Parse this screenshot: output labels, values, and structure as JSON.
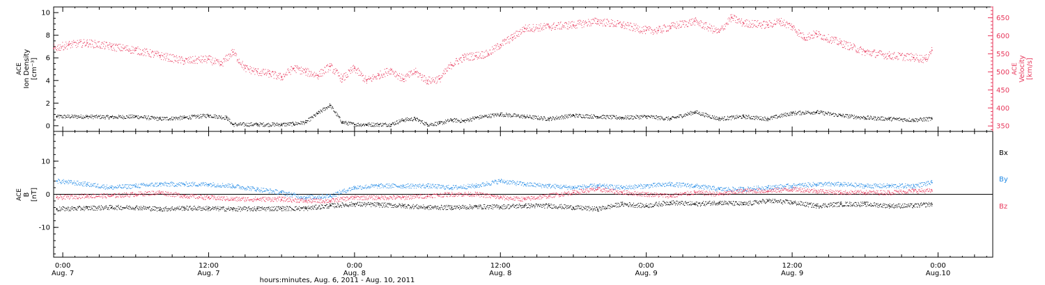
{
  "xaxis": {
    "tick_labels": [
      {
        "time": "0:00",
        "date": "Aug. 7",
        "hours": 0
      },
      {
        "time": "12:00",
        "date": "Aug. 7",
        "hours": 12
      },
      {
        "time": "0:00",
        "date": "Aug. 8",
        "hours": 24
      },
      {
        "time": "12:00",
        "date": "Aug. 8",
        "hours": 36
      },
      {
        "time": "0:00",
        "date": "Aug. 9",
        "hours": 48
      },
      {
        "time": "12:00",
        "date": "Aug. 9",
        "hours": 60
      },
      {
        "time": "0:00",
        "date": "Aug.10",
        "hours": 72
      }
    ],
    "title": "hours:minutes, Aug.  6, 2011 - Aug. 10, 2011",
    "range_hours_from_aug7_0000": [
      -0.75,
      76.5
    ]
  },
  "colors": {
    "density": "#000000",
    "velocity": "#e8385c",
    "bx": "#000000",
    "by": "#1e88e5",
    "bz": "#e8385c"
  },
  "chart_data": [
    {
      "type": "scatter",
      "panel": "top",
      "left_axis": {
        "label_lines": [
          "ACE",
          "Ion Density",
          "[cm⁻³]"
        ],
        "ylim": [
          -0.5,
          10.5
        ],
        "ticks": [
          "0",
          "2",
          "4",
          "6",
          "8",
          "10"
        ]
      },
      "right_axis": {
        "label_lines": [
          "ACE",
          "Velocity",
          "[km/s]"
        ],
        "ylim": [
          335,
          680
        ],
        "ticks": [
          "350",
          "400",
          "450",
          "500",
          "550",
          "600",
          "650"
        ]
      },
      "series": [
        {
          "key": "density",
          "axis": "left",
          "x": [
            -0.5,
            2,
            4,
            6,
            8,
            10,
            12,
            13.5,
            14,
            16,
            18,
            19,
            20,
            21,
            22,
            23,
            24,
            25,
            26,
            27,
            28,
            29,
            30,
            31,
            32,
            33,
            34,
            36,
            38,
            40,
            42,
            44,
            46,
            48,
            50,
            52,
            54,
            56,
            58,
            60,
            62,
            64,
            66,
            68,
            70,
            71.5
          ],
          "y": [
            0.8,
            0.8,
            0.75,
            0.8,
            0.6,
            0.7,
            0.9,
            0.7,
            0.1,
            0.1,
            0.1,
            0.15,
            0.3,
            1.1,
            1.8,
            0.3,
            0.1,
            0.1,
            0.1,
            0.1,
            0.5,
            0.6,
            0.1,
            0.2,
            0.5,
            0.4,
            0.7,
            1.0,
            0.8,
            0.6,
            0.9,
            0.8,
            0.7,
            0.8,
            0.6,
            1.2,
            0.6,
            0.8,
            0.6,
            1.1,
            1.2,
            0.9,
            0.7,
            0.6,
            0.5,
            0.6
          ]
        },
        {
          "key": "velocity",
          "axis": "right",
          "x": [
            -0.75,
            0.5,
            2,
            4,
            6,
            8,
            10,
            12,
            13,
            14,
            15,
            16,
            17,
            18,
            19,
            20,
            21,
            22,
            23,
            24,
            25,
            26,
            27,
            28,
            29,
            30,
            31,
            32,
            33,
            34,
            35,
            36,
            37,
            38,
            40,
            42,
            44,
            46,
            48,
            49,
            50,
            52,
            54,
            55,
            56,
            58,
            59,
            60,
            61,
            62,
            64,
            66,
            68,
            70,
            71,
            71.5
          ],
          "y": [
            565,
            575,
            580,
            570,
            560,
            545,
            530,
            535,
            520,
            555,
            510,
            500,
            495,
            485,
            510,
            500,
            490,
            515,
            480,
            510,
            475,
            490,
            505,
            480,
            500,
            475,
            480,
            520,
            540,
            545,
            550,
            575,
            595,
            620,
            625,
            630,
            640,
            630,
            615,
            615,
            625,
            640,
            610,
            650,
            635,
            630,
            640,
            625,
            595,
            605,
            580,
            555,
            545,
            540,
            535,
            560
          ]
        }
      ]
    },
    {
      "type": "scatter",
      "panel": "bottom",
      "left_axis": {
        "label_lines": [
          "ACE",
          "B",
          "[nT]"
        ],
        "ylim": [
          -19,
          19
        ],
        "ticks": [
          "-10",
          "0",
          "10"
        ]
      },
      "legend": [
        "Bx",
        "By",
        "Bz"
      ],
      "series": [
        {
          "key": "bx",
          "x": [
            -0.5,
            2,
            4,
            6,
            8,
            10,
            12,
            14,
            16,
            18,
            20,
            22,
            24,
            26,
            28,
            30,
            32,
            34,
            36,
            38,
            40,
            42,
            44,
            46,
            48,
            50,
            52,
            54,
            56,
            58,
            60,
            62,
            64,
            66,
            68,
            70,
            71.5
          ],
          "y": [
            -4.5,
            -4.2,
            -4,
            -4,
            -4.5,
            -4.2,
            -4.3,
            -4.5,
            -4.4,
            -4.3,
            -4.3,
            -3.5,
            -3,
            -3.2,
            -3.5,
            -4,
            -4,
            -3.8,
            -3.8,
            -3.5,
            -3.5,
            -4,
            -4.5,
            -3,
            -3.5,
            -2.5,
            -3,
            -2.5,
            -3,
            -2,
            -2.5,
            -3.5,
            -3,
            -3,
            -3.5,
            -3.5,
            -3
          ]
        },
        {
          "key": "by",
          "x": [
            -0.5,
            2,
            4,
            6,
            8,
            10,
            12,
            14,
            16,
            18,
            20,
            22,
            24,
            26,
            28,
            30,
            32,
            34,
            36,
            38,
            40,
            42,
            44,
            46,
            48,
            50,
            52,
            54,
            56,
            58,
            60,
            62,
            64,
            66,
            68,
            70,
            71.5
          ],
          "y": [
            4,
            3,
            2,
            2.5,
            3,
            3,
            3,
            2.5,
            1.5,
            0.5,
            -1,
            -0.5,
            2,
            2.5,
            2.5,
            2.5,
            2,
            2.5,
            4,
            3,
            2.5,
            2,
            2.5,
            2,
            2.5,
            3,
            2.5,
            1.5,
            1.5,
            2,
            2.5,
            3,
            3,
            2.5,
            2.5,
            2.5,
            3.5
          ]
        },
        {
          "key": "bz",
          "x": [
            -0.5,
            2,
            4,
            6,
            8,
            10,
            12,
            14,
            16,
            18,
            20,
            22,
            24,
            26,
            28,
            30,
            32,
            34,
            36,
            38,
            40,
            42,
            44,
            46,
            48,
            50,
            52,
            54,
            56,
            58,
            60,
            62,
            64,
            66,
            68,
            70,
            71.5
          ],
          "y": [
            -1,
            -0.5,
            -0.5,
            0,
            0.5,
            -0.5,
            -1,
            -1.5,
            -1.5,
            -1.5,
            -2,
            -2,
            -1,
            -1,
            -1,
            -0.5,
            0,
            0,
            -1,
            -1.5,
            -0.5,
            0.5,
            1.5,
            0.5,
            0,
            -0.5,
            0.5,
            0,
            1,
            1,
            1.5,
            1,
            0.5,
            0.5,
            0.5,
            1,
            1
          ]
        }
      ]
    }
  ]
}
